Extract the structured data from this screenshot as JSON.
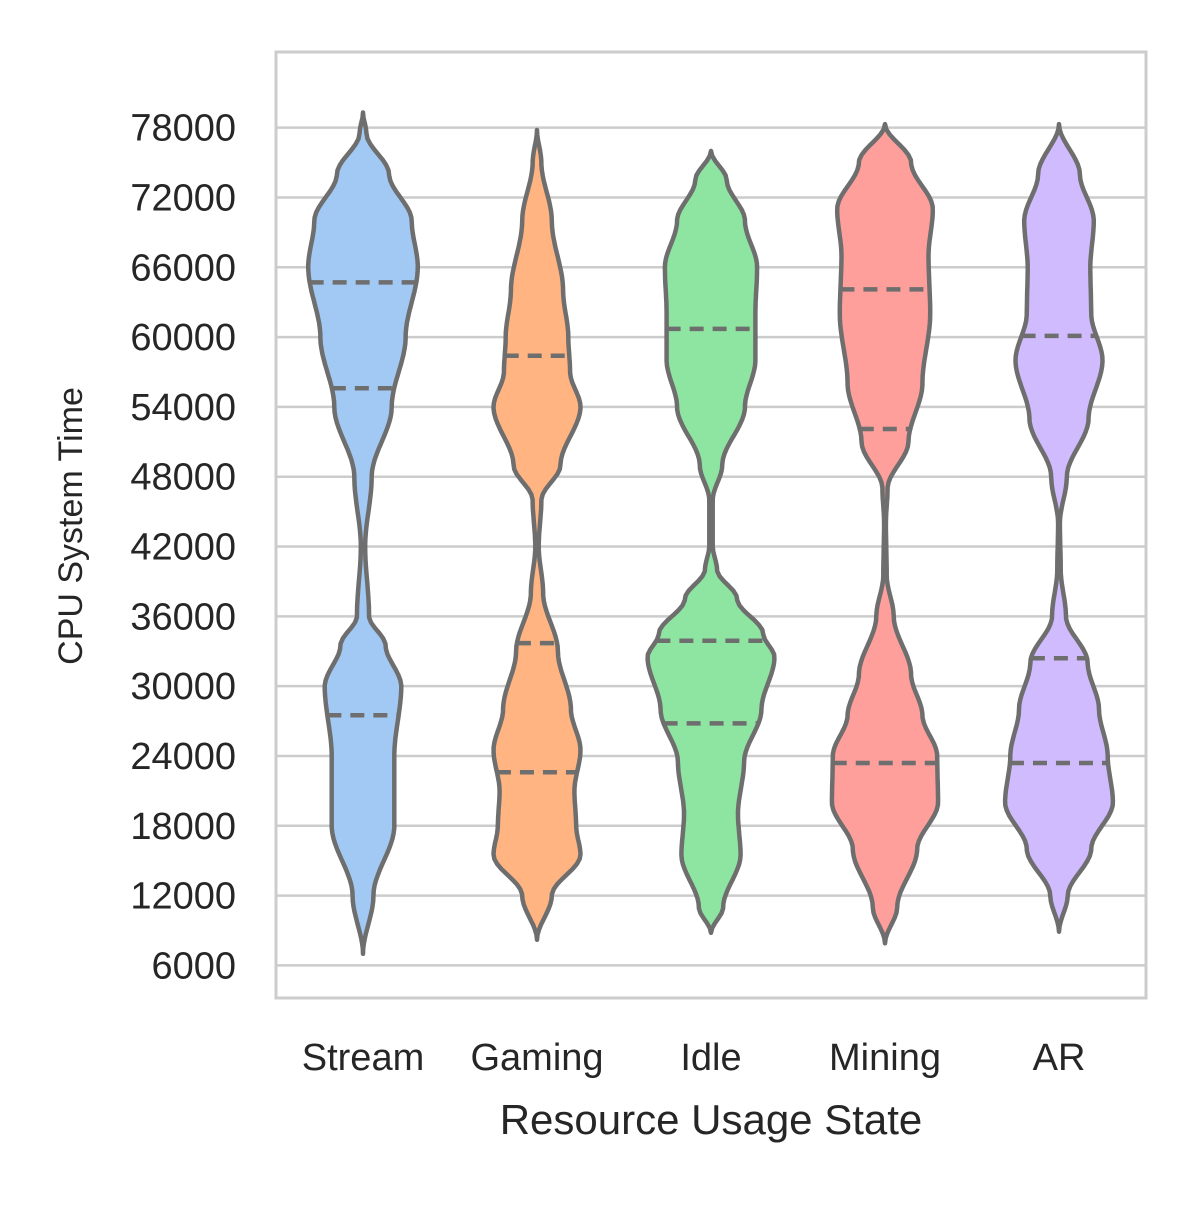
{
  "chart_data": {
    "type": "violin",
    "title": "",
    "xlabel": "Resource Usage State",
    "ylabel": "CPU System Time",
    "categories": [
      "Stream",
      "Gaming",
      "Idle",
      "Mining",
      "AR"
    ],
    "yticks": [
      6000,
      12000,
      18000,
      24000,
      30000,
      36000,
      42000,
      48000,
      54000,
      60000,
      66000,
      72000,
      78000
    ],
    "ylim": [
      3200,
      84500
    ],
    "grid": "horizontal",
    "inner": "quartile",
    "colors": [
      "#a1c9f4",
      "#ffb482",
      "#8de5a1",
      "#ff9f9b",
      "#d0bbff"
    ],
    "outline_color": "#6e6e6e",
    "violins": [
      {
        "name": "Stream",
        "min": 7000,
        "max": 79300,
        "q1": 27500,
        "median": 55600,
        "q3": 64700,
        "profile": [
          [
            7000,
            0
          ],
          [
            12000,
            0.12
          ],
          [
            18000,
            0.36
          ],
          [
            24000,
            0.36
          ],
          [
            30000,
            0.44
          ],
          [
            33500,
            0.26
          ],
          [
            36000,
            0.07
          ],
          [
            42000,
            0.025
          ],
          [
            48000,
            0.1
          ],
          [
            54000,
            0.33
          ],
          [
            60000,
            0.49
          ],
          [
            66000,
            0.63
          ],
          [
            70000,
            0.56
          ],
          [
            74000,
            0.3
          ],
          [
            77500,
            0.04
          ],
          [
            79300,
            0
          ]
        ]
      },
      {
        "name": "Gaming",
        "min": 8200,
        "max": 77800,
        "q1": 22600,
        "median": 33700,
        "q3": 58400,
        "profile": [
          [
            8200,
            0
          ],
          [
            12000,
            0.17
          ],
          [
            15500,
            0.5
          ],
          [
            18000,
            0.45
          ],
          [
            21000,
            0.43
          ],
          [
            24500,
            0.5
          ],
          [
            28000,
            0.39
          ],
          [
            33000,
            0.24
          ],
          [
            38000,
            0.07
          ],
          [
            42000,
            0.02
          ],
          [
            46000,
            0.05
          ],
          [
            49000,
            0.27
          ],
          [
            54000,
            0.5
          ],
          [
            57000,
            0.38
          ],
          [
            60000,
            0.36
          ],
          [
            64000,
            0.3
          ],
          [
            70000,
            0.17
          ],
          [
            75000,
            0.05
          ],
          [
            77800,
            0
          ]
        ]
      },
      {
        "name": "Idle",
        "min": 8800,
        "max": 76000,
        "q1": 26800,
        "median": 33900,
        "q3": 60700,
        "profile": [
          [
            8800,
            0
          ],
          [
            11000,
            0.14
          ],
          [
            15500,
            0.34
          ],
          [
            19000,
            0.31
          ],
          [
            23500,
            0.38
          ],
          [
            28000,
            0.58
          ],
          [
            32500,
            0.73
          ],
          [
            34500,
            0.6
          ],
          [
            37500,
            0.3
          ],
          [
            40000,
            0.07
          ],
          [
            42000,
            0.02
          ],
          [
            46000,
            0.02
          ],
          [
            49000,
            0.13
          ],
          [
            54000,
            0.39
          ],
          [
            58000,
            0.51
          ],
          [
            62000,
            0.51
          ],
          [
            66000,
            0.53
          ],
          [
            70000,
            0.39
          ],
          [
            73500,
            0.18
          ],
          [
            76000,
            0
          ]
        ]
      },
      {
        "name": "Mining",
        "min": 7900,
        "max": 78300,
        "q1": 23400,
        "median": 52100,
        "q3": 64100,
        "profile": [
          [
            7900,
            0
          ],
          [
            11000,
            0.14
          ],
          [
            16000,
            0.37
          ],
          [
            20000,
            0.61
          ],
          [
            24000,
            0.6
          ],
          [
            27500,
            0.43
          ],
          [
            31000,
            0.3
          ],
          [
            36000,
            0.1
          ],
          [
            39500,
            0.02
          ],
          [
            44000,
            0.01
          ],
          [
            47000,
            0.03
          ],
          [
            51000,
            0.27
          ],
          [
            56000,
            0.43
          ],
          [
            62000,
            0.52
          ],
          [
            67000,
            0.5
          ],
          [
            71000,
            0.55
          ],
          [
            75000,
            0.3
          ],
          [
            78300,
            0
          ]
        ]
      },
      {
        "name": "AR",
        "min": 8900,
        "max": 78300,
        "q1": 23400,
        "median": 32400,
        "q3": 60100,
        "profile": [
          [
            8900,
            0
          ],
          [
            12000,
            0.1
          ],
          [
            16000,
            0.37
          ],
          [
            20000,
            0.62
          ],
          [
            24000,
            0.56
          ],
          [
            28000,
            0.46
          ],
          [
            32000,
            0.33
          ],
          [
            36000,
            0.08
          ],
          [
            40000,
            0.02
          ],
          [
            44000,
            0.01
          ],
          [
            48000,
            0.09
          ],
          [
            53000,
            0.34
          ],
          [
            58000,
            0.5
          ],
          [
            62000,
            0.37
          ],
          [
            66000,
            0.36
          ],
          [
            70000,
            0.4
          ],
          [
            74000,
            0.24
          ],
          [
            78300,
            0
          ]
        ]
      }
    ]
  }
}
